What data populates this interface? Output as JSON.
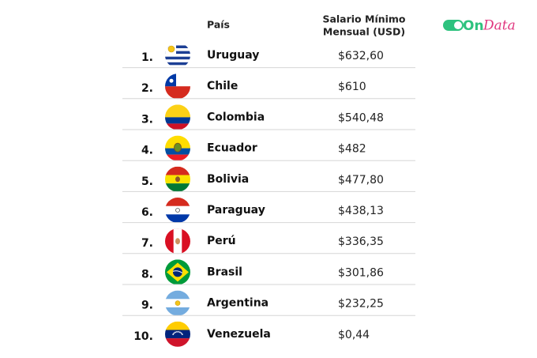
{
  "header": {
    "country": "País",
    "salary_line1": "Salario Mínimo",
    "salary_line2": "Mensual (USD)"
  },
  "logo": {
    "part1": "On",
    "part2": "Data"
  },
  "table": {
    "rows": [
      [
        "1.",
        "Uruguay",
        "$632,60"
      ],
      [
        "2.",
        "Chile",
        "$610"
      ],
      [
        "3.",
        "Colombia",
        "$540,48"
      ],
      [
        "4.",
        "Ecuador",
        "$482"
      ],
      [
        "5.",
        "Bolivia",
        "$477,80"
      ],
      [
        "6.",
        "Paraguay",
        "$438,13"
      ],
      [
        "7.",
        "Perú",
        "$336,35"
      ],
      [
        "8.",
        "Brasil",
        "$301,86"
      ],
      [
        "9.",
        "Argentina",
        "$232,25"
      ],
      [
        "10.",
        "Venezuela",
        "$0,44"
      ]
    ]
  }
}
